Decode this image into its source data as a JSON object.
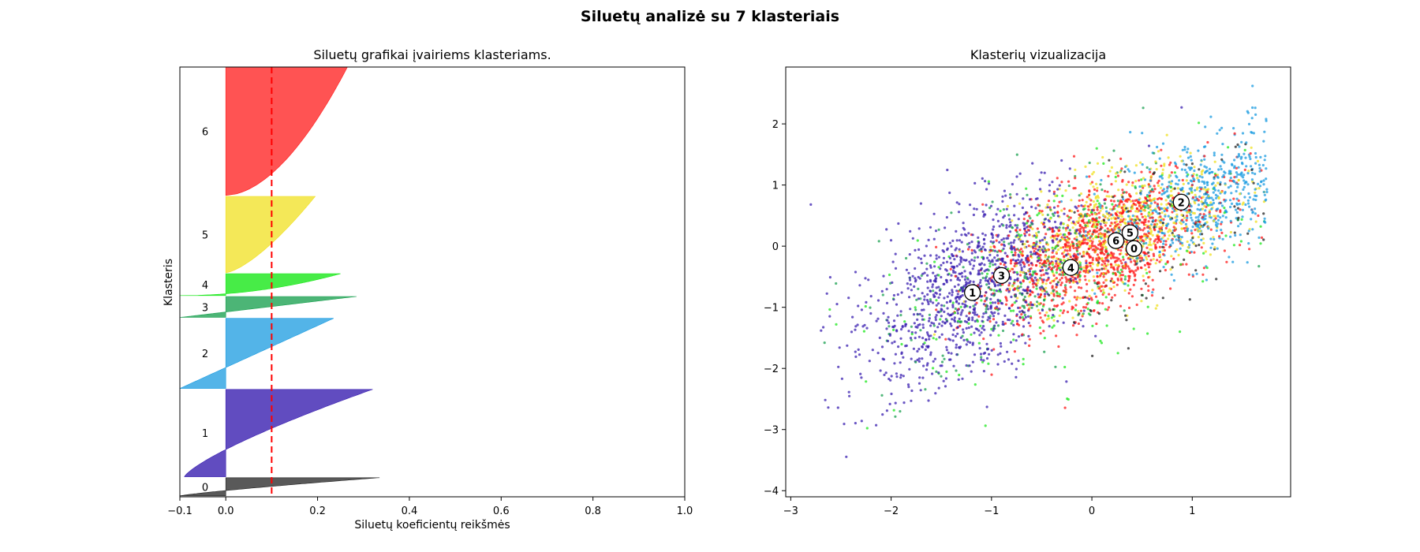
{
  "figure": {
    "suptitle": "Siluetų analizė su 7 klasteriais"
  },
  "colors": {
    "cluster_0": "#222222",
    "cluster_1": "#3a1fb0",
    "cluster_2": "#1a9be0",
    "cluster_3": "#1aa050",
    "cluster_4": "#1ee81e",
    "cluster_5": "#f0e020",
    "cluster_6": "#ff1a1a",
    "average_line": "#ff0000"
  },
  "chart_data": [
    {
      "type": "area",
      "title": "Siluetų grafikai įvairiems klasteriams.",
      "xlabel": "Siluetų koeficientų reikšmės",
      "ylabel": "Klasteris",
      "xlim": [
        -0.1,
        1.0
      ],
      "ylim": [
        0,
        4720
      ],
      "xticks": [
        -0.1,
        0.0,
        0.2,
        0.4,
        0.6,
        0.8,
        1.0
      ],
      "xtick_labels": [
        "−0.1",
        "0.0",
        "0.2",
        "0.4",
        "0.6",
        "0.8",
        "1.0"
      ],
      "yticks": [],
      "grid": false,
      "average_silhouette": 0.1,
      "clusters": [
        {
          "label": "0",
          "y_start": 10,
          "y_end": 210,
          "max": 0.335,
          "min": -0.1,
          "shape": 1.2,
          "alpha": 0.75
        },
        {
          "label": "1",
          "y_start": 220,
          "y_end": 1180,
          "max": 0.32,
          "min": -0.09,
          "shape": 1.3,
          "alpha": 0.8
        },
        {
          "label": "2",
          "y_start": 1190,
          "y_end": 1960,
          "max": 0.235,
          "min": -0.1,
          "shape": 1.0,
          "alpha": 0.75
        },
        {
          "label": "3",
          "y_start": 1970,
          "y_end": 2200,
          "max": 0.285,
          "min": -0.1,
          "shape": 1.0,
          "alpha": 0.78
        },
        {
          "label": "4",
          "y_start": 2210,
          "y_end": 2450,
          "max": 0.25,
          "min": -0.1,
          "shape": 0.5,
          "alpha": 0.82
        },
        {
          "label": "5",
          "y_start": 2460,
          "y_end": 3300,
          "max": 0.195,
          "min": 0.0,
          "shape": 0.7,
          "alpha": 0.75
        },
        {
          "label": "6",
          "y_start": 3310,
          "y_end": 4720,
          "max": 0.265,
          "min": 0.0,
          "shape": 0.55,
          "alpha": 0.75
        }
      ]
    },
    {
      "type": "scatter",
      "title": "Klasterių vizualizacija",
      "xlabel": "",
      "ylabel": "",
      "xlim": [
        -3.05,
        1.98
      ],
      "ylim": [
        -4.1,
        2.93
      ],
      "xticks": [
        -3,
        -2,
        -1,
        0,
        1
      ],
      "xtick_labels": [
        "−3",
        "−2",
        "−1",
        "0",
        "1"
      ],
      "yticks": [
        -4,
        -3,
        -2,
        -1,
        0,
        1,
        2
      ],
      "ytick_labels": [
        "−4",
        "−3",
        "−2",
        "−1",
        "0",
        "1",
        "2"
      ],
      "grid": false,
      "centers": [
        {
          "label": "0",
          "x": 0.42,
          "y": -0.04
        },
        {
          "label": "1",
          "x": -1.19,
          "y": -0.76
        },
        {
          "label": "2",
          "x": 0.89,
          "y": 0.72
        },
        {
          "label": "3",
          "x": -0.9,
          "y": -0.48
        },
        {
          "label": "4",
          "x": -0.21,
          "y": -0.35
        },
        {
          "label": "5",
          "x": 0.38,
          "y": 0.22
        },
        {
          "label": "6",
          "x": 0.24,
          "y": 0.09
        }
      ],
      "point_groups": [
        {
          "cluster": "0",
          "count": 110,
          "mean": [
            0.55,
            0.1
          ],
          "sd": [
            0.6,
            0.75
          ],
          "rho": 0.55
        },
        {
          "cluster": "1",
          "count": 1050,
          "mean": [
            -1.2,
            -0.75
          ],
          "sd": [
            0.55,
            0.8
          ],
          "rho": 0.55
        },
        {
          "cluster": "2",
          "count": 550,
          "mean": [
            1.05,
            0.75
          ],
          "sd": [
            0.45,
            0.55
          ],
          "rho": 0.4
        },
        {
          "cluster": "3",
          "count": 250,
          "mean": [
            -0.6,
            -0.3
          ],
          "sd": [
            0.8,
            0.9
          ],
          "rho": 0.6
        },
        {
          "cluster": "4",
          "count": 230,
          "mean": [
            -0.35,
            -0.45
          ],
          "sd": [
            0.9,
            0.9
          ],
          "rho": 0.55
        },
        {
          "cluster": "5",
          "count": 650,
          "mean": [
            0.3,
            0.3
          ],
          "sd": [
            0.55,
            0.55
          ],
          "rho": 0.5
        },
        {
          "cluster": "6",
          "count": 1150,
          "mean": [
            0.05,
            -0.05
          ],
          "sd": [
            0.55,
            0.6
          ],
          "rho": 0.55
        }
      ],
      "outliers": [
        {
          "cluster": "1",
          "x": -2.8,
          "y": 0.68
        },
        {
          "cluster": "2",
          "x": 1.6,
          "y": 2.62
        }
      ]
    }
  ]
}
